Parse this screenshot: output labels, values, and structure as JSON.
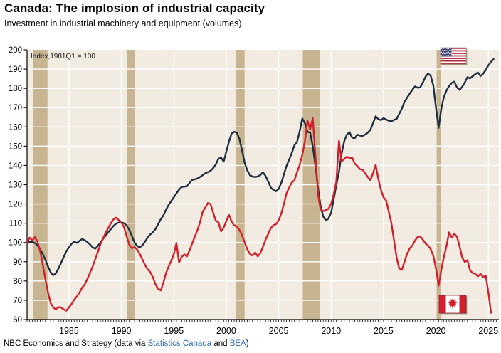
{
  "header": {
    "title": "Canada: The implosion of industrial capacity",
    "subtitle": "Investment in industrial machinery and equipment (volumes)"
  },
  "chart_data": {
    "type": "line",
    "title": "Canada: The implosion of industrial capacity",
    "subtitle": "Investment in industrial machinery and equipment (volumes)",
    "annotation": "Index,1981Q1 = 100",
    "x_start_year": 1981,
    "points_per_year": 4,
    "x_axis": {
      "range": [
        1981,
        2026
      ],
      "tick_years": [
        1985,
        1990,
        1995,
        2000,
        2005,
        2010,
        2015,
        2020,
        2025
      ],
      "minor_ticks": "quarterly"
    },
    "y_axis": {
      "min": 60,
      "max": 200,
      "step": 10
    },
    "grid": "on",
    "colors": {
      "plot_bg": "#f1ebe2",
      "recession_band": "#c7b491",
      "grid": "#ffffff",
      "axis": "#000000"
    },
    "recession_bands": [
      [
        1981.55,
        1982.95
      ],
      [
        1990.55,
        1991.3
      ],
      [
        2000.95,
        2001.75
      ],
      [
        2007.3,
        2008.95
      ],
      [
        2020.05,
        2020.5
      ]
    ],
    "series": [
      {
        "name": "United States",
        "flag": "us-flag",
        "color": "#1e2f42",
        "values": [
          100,
          100.3,
          100.2,
          99.8,
          98.5,
          96.5,
          94,
          91,
          87.5,
          84.5,
          83,
          84,
          86.5,
          89.5,
          92.5,
          95.5,
          97.5,
          99.3,
          100.4,
          99.8,
          100.8,
          101.8,
          101.2,
          100.2,
          99,
          97.5,
          96.8,
          98.2,
          100,
          101.8,
          103.6,
          105.4,
          107,
          108.6,
          109.8,
          110.4,
          110.4,
          110,
          108.8,
          106.5,
          103.5,
          100,
          98.2,
          97.5,
          98.5,
          100.5,
          102.5,
          104.2,
          105.3,
          107,
          109.5,
          112,
          114,
          117,
          119.5,
          121.5,
          123.5,
          125.5,
          127.4,
          128.8,
          129,
          129.2,
          131,
          132.5,
          132.8,
          133.2,
          134,
          135,
          136,
          136.5,
          137.2,
          138.6,
          140.5,
          143.5,
          144,
          142,
          147,
          152.2,
          156.5,
          157.5,
          157,
          153.8,
          148,
          141.5,
          137.5,
          135,
          134.2,
          134,
          134.3,
          135,
          136.5,
          134.5,
          131.6,
          128.5,
          127.3,
          126.6,
          127.8,
          131,
          135.5,
          139.7,
          143,
          146.4,
          150.5,
          152.2,
          157.7,
          164.3,
          162,
          157.5,
          157,
          150,
          140,
          128,
          119,
          113.5,
          111.4,
          112.5,
          115.5,
          122.4,
          129.8,
          136.5,
          146,
          152.5,
          156,
          157.3,
          154.5,
          154,
          156,
          155.5,
          155.3,
          156,
          157,
          158.5,
          162,
          165.5,
          164,
          163.5,
          164.5,
          163.8,
          163.2,
          163,
          163.6,
          164.2,
          166.8,
          169.5,
          173,
          175.2,
          177.3,
          179.3,
          181,
          180.3,
          180.5,
          183,
          186,
          187.7,
          186.5,
          181.5,
          170,
          159.5,
          169.2,
          175.4,
          178.8,
          181.2,
          182.8,
          183.5,
          180.5,
          179.2,
          180.8,
          183,
          185.8,
          185.2,
          186.3,
          187.4,
          188.3,
          186.4,
          187.6,
          189.6,
          192,
          193.8,
          195.2
        ]
      },
      {
        "name": "Canada",
        "flag": "canada-flag",
        "color": "#d1202b",
        "values": [
          100,
          102.5,
          101,
          102.8,
          100.5,
          95.5,
          88.5,
          81,
          74,
          68.5,
          66.3,
          65.2,
          66.5,
          66.2,
          65.2,
          64.6,
          66.3,
          68,
          70.3,
          72,
          74,
          76.5,
          78.2,
          81,
          84.2,
          87.5,
          91.2,
          95,
          99,
          102.2,
          105,
          107.6,
          110,
          112,
          112.9,
          111.6,
          110.4,
          108,
          103.2,
          98.8,
          97,
          97.6,
          96.4,
          94,
          91.2,
          88.3,
          86.2,
          84.6,
          82,
          78.3,
          76,
          75.1,
          79,
          84,
          87.5,
          90.5,
          94,
          99.8,
          89.6,
          92.5,
          93.8,
          92.8,
          96,
          99.6,
          103,
          106.4,
          110.5,
          116,
          118.1,
          120.5,
          119.9,
          115.6,
          111.3,
          110.5,
          105.8,
          107.7,
          111,
          114.4,
          111,
          108.9,
          108.2,
          106.5,
          103.8,
          100.2,
          96.6,
          94.1,
          93.2,
          94.8,
          92.8,
          94.5,
          97.8,
          101.5,
          104.5,
          107.5,
          109,
          109.5,
          111.5,
          115.1,
          120,
          125.5,
          128.5,
          131.1,
          132.3,
          136.5,
          140.3,
          145.5,
          152.5,
          163.3,
          158.7,
          164.5,
          145,
          125,
          117,
          116.3,
          116.8,
          117.5,
          120,
          125,
          131.6,
          152.8,
          142.1,
          143.4,
          144.5,
          143.8,
          144.2,
          141,
          139.7,
          138,
          137.8,
          136,
          134,
          132.3,
          136,
          140.3,
          133,
          127.3,
          123.5,
          121.8,
          116,
          110.1,
          101,
          92,
          86.5,
          85.8,
          90,
          94.1,
          97,
          98.4,
          101,
          102.8,
          103.2,
          101.5,
          99.5,
          98.4,
          96.6,
          93,
          86.6,
          77.5,
          85.5,
          92.3,
          98,
          105.2,
          102.7,
          104.6,
          103,
          98,
          92.3,
          89.9,
          90.8,
          85.5,
          84.2,
          83.7,
          82.4,
          83.7,
          82,
          82.8,
          74,
          63.5
        ]
      }
    ]
  },
  "footer": {
    "prefix": "NBC Economics and Strategy (data via ",
    "link_statcan": "Statistics Canada",
    "middle": " and ",
    "link_bea": "BEA",
    "suffix": ")",
    "link_color": "#2f6cb0"
  }
}
